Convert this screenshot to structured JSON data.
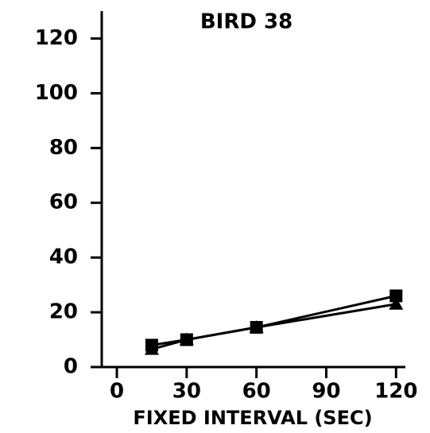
{
  "chart_data": {
    "type": "line",
    "title": "BIRD 38",
    "xlabel": "FIXED INTERVAL (SEC)",
    "x": [
      15,
      30,
      60,
      120
    ],
    "series": [
      {
        "color": "#000000",
        "marker": "square",
        "values": [
          8,
          10,
          14.5,
          26
        ]
      },
      {
        "color": "#000000",
        "marker": "triangle",
        "values": [
          6.5,
          10,
          14.5,
          23
        ]
      }
    ],
    "xlim": [
      -6.5,
      124
    ],
    "xticks": [
      0,
      30,
      60,
      90,
      120
    ],
    "ylim": [
      0,
      130
    ],
    "yticks": [
      0,
      20,
      40,
      60,
      80,
      100,
      120
    ]
  }
}
